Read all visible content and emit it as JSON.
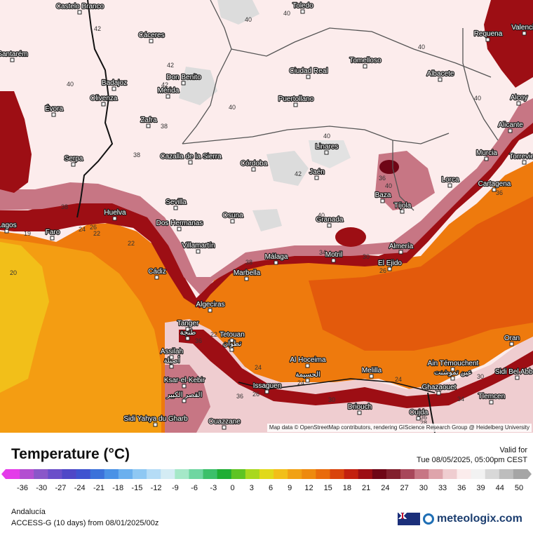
{
  "legend": {
    "title": "Temperature (°C)",
    "valid_label": "Valid for",
    "valid_time": "Tue 08/05/2025, 05:00pm CEST",
    "ticks": [
      "-36",
      "-30",
      "-27",
      "-24",
      "-21",
      "-18",
      "-15",
      "-12",
      "-9",
      "-6",
      "-3",
      "0",
      "3",
      "6",
      "9",
      "12",
      "15",
      "18",
      "21",
      "24",
      "27",
      "30",
      "33",
      "36",
      "39",
      "44",
      "50"
    ],
    "colors": [
      "#e43be9",
      "#b34fd1",
      "#8a57c9",
      "#6a4fc9",
      "#4f47c7",
      "#3f53d0",
      "#3b72da",
      "#4a92e6",
      "#6bb0ee",
      "#8fc8f3",
      "#b5dcf6",
      "#d4ecf4",
      "#a5e8c8",
      "#6fd6a1",
      "#3cc06a",
      "#1fae34",
      "#5fc423",
      "#a9d81e",
      "#e1d91a",
      "#f2bf19",
      "#f1a114",
      "#ee8a0e",
      "#e96b0b",
      "#d9440c",
      "#c3200f",
      "#9d0e14",
      "#6f0616",
      "#82202e",
      "#a8475a",
      "#c77684",
      "#dea4ab",
      "#efcdd0",
      "#fbecec",
      "#f2f2f2",
      "#d8d8d8",
      "#bdbdbd",
      "#a5a5a5"
    ]
  },
  "region": "Andalucía",
  "model_run": "ACCESS-G (10 days) from 08/01/2025/00z",
  "brand": "meteologix.com",
  "attribution": "Map data © OpenStreetMap contributors, rendering GIScience Research Group @ Heidelberg University",
  "cities": [
    {
      "name": "Castelo Branco"
    },
    {
      "name": "Toledo"
    },
    {
      "name": "Valencia"
    },
    {
      "name": "Cáceres"
    },
    {
      "name": "Requena"
    },
    {
      "name": "Santarém"
    },
    {
      "name": "Ciudad Real"
    },
    {
      "name": "Tomelloso"
    },
    {
      "name": "Don Benito"
    },
    {
      "name": "Badajoz"
    },
    {
      "name": "Mérida"
    },
    {
      "name": "Albacete"
    },
    {
      "name": "Évora"
    },
    {
      "name": "Olivenza"
    },
    {
      "name": "Puertollano"
    },
    {
      "name": "Alcoy"
    },
    {
      "name": "Zafra"
    },
    {
      "name": "Alicante"
    },
    {
      "name": "Cazalla de la Sierra"
    },
    {
      "name": "Linares"
    },
    {
      "name": "Murcia"
    },
    {
      "name": "Serpa"
    },
    {
      "name": "Córdoba"
    },
    {
      "name": "Jaén"
    },
    {
      "name": "Torrevieja"
    },
    {
      "name": "Lorca"
    },
    {
      "name": "Cartagena"
    },
    {
      "name": "Sevilla"
    },
    {
      "name": "Baza"
    },
    {
      "name": "Huelva"
    },
    {
      "name": "Tíjola"
    },
    {
      "name": "Lagos"
    },
    {
      "name": "Faro"
    },
    {
      "name": "Dos Hermanas"
    },
    {
      "name": "Osuna"
    },
    {
      "name": "Granada"
    },
    {
      "name": "Almería"
    },
    {
      "name": "Villamartín"
    },
    {
      "name": "Málaga"
    },
    {
      "name": "Motril"
    },
    {
      "name": "El Ejido"
    },
    {
      "name": "Cádiz"
    },
    {
      "name": "Marbella"
    },
    {
      "name": "Algeciras"
    },
    {
      "name": "Tanger"
    },
    {
      "name": "طنجة"
    },
    {
      "name": "Tetouan"
    },
    {
      "name": "تطوان"
    },
    {
      "name": "Oran"
    },
    {
      "name": "Assilah"
    },
    {
      "name": "أصيلة"
    },
    {
      "name": "Al Hoceima"
    },
    {
      "name": "الحسيمة"
    },
    {
      "name": "Melilla"
    },
    {
      "name": "Ain Témouchent"
    },
    {
      "name": "عين تموشنت"
    },
    {
      "name": "Sidi Bel Abbès"
    },
    {
      "name": "Ksar-el-Kebir"
    },
    {
      "name": "القصر الكبير"
    },
    {
      "name": "Issaguen"
    },
    {
      "name": "Ghazaouet"
    },
    {
      "name": "Driouch"
    },
    {
      "name": "Tlemcen"
    },
    {
      "name": "Sidi Yahya du Gharb"
    },
    {
      "name": "Ouazzane"
    },
    {
      "name": "Oujda"
    }
  ],
  "contour_labels": [
    "42",
    "40",
    "40",
    "40",
    "40",
    "42",
    "42",
    "40",
    "38",
    "40",
    "38",
    "42",
    "40",
    "36",
    "40",
    "38",
    "36",
    "40",
    "19",
    "24",
    "26",
    "22",
    "22",
    "20",
    "34",
    "30",
    "38",
    "26",
    "28",
    "24",
    "24",
    "30",
    "36",
    "26",
    "24",
    "30",
    "36",
    "34",
    "36",
    "26",
    "22"
  ]
}
